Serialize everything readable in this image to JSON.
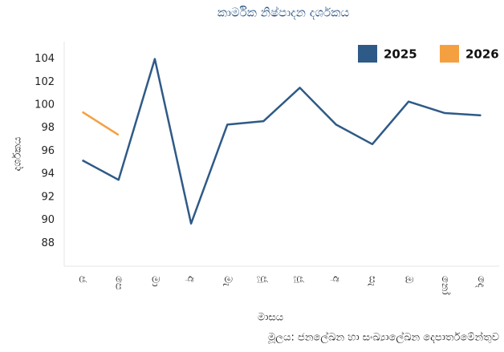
{
  "chart_data": {
    "type": "line",
    "title": "කාර්මික නිෂ්පාදන දර්ශකය",
    "x_label": "මාසය",
    "y_label": "දර්ශකය",
    "source": "මූලය: ජනලේඛන හා සංඛ්‍යාලේඛන දෙපාර්තමේන්තුව",
    "categories": [
      "ජ",
      "පෙ",
      "මා",
      "අ",
      "මැ",
      "ජූ",
      "ජූ",
      "අ",
      "සැ",
      "ඔ",
      "නෝ",
      "දෙ"
    ],
    "series": [
      {
        "name": "2025",
        "color": "#2e5a87",
        "values": [
          95.2,
          93.5,
          104,
          89.7,
          98.3,
          98.6,
          101.5,
          98.3,
          96.6,
          100.3,
          99.3,
          99.1
        ]
      },
      {
        "name": "2026",
        "color": "#f5a040",
        "values": [
          99.4,
          97.4,
          null,
          null,
          null,
          null,
          null,
          null,
          null,
          null,
          null,
          null
        ]
      }
    ],
    "ylim": [
      86,
      105.5
    ],
    "yticks": [
      88,
      90,
      92,
      94,
      96,
      98,
      100,
      102,
      104
    ],
    "grid": false,
    "legend": "top-right"
  }
}
